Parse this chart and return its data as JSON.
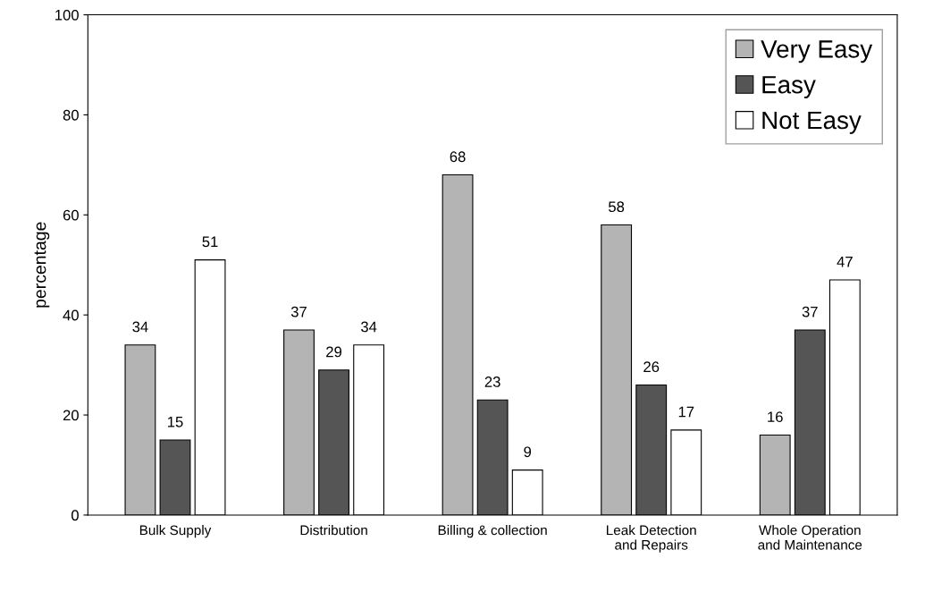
{
  "chart_data": {
    "type": "bar",
    "ylabel": "percentage",
    "categories": [
      "Bulk Supply",
      "Distribution",
      "Billing & collection",
      "Leak Detection\nand Repairs",
      "Whole Operation\nand Maintenance"
    ],
    "series": [
      {
        "name": "Very Easy",
        "color": "#b4b4b4",
        "values": [
          34,
          37,
          68,
          58,
          16
        ]
      },
      {
        "name": "Easy",
        "color": "#555555",
        "values": [
          15,
          29,
          23,
          26,
          37
        ]
      },
      {
        "name": "Not Easy",
        "color": "#ffffff",
        "values": [
          51,
          34,
          9,
          17,
          47
        ]
      }
    ],
    "ylim": [
      0,
      100
    ],
    "yticks": [
      0,
      20,
      40,
      60,
      80,
      100
    ],
    "grid": false,
    "legend": "top right",
    "data_labels": true
  }
}
